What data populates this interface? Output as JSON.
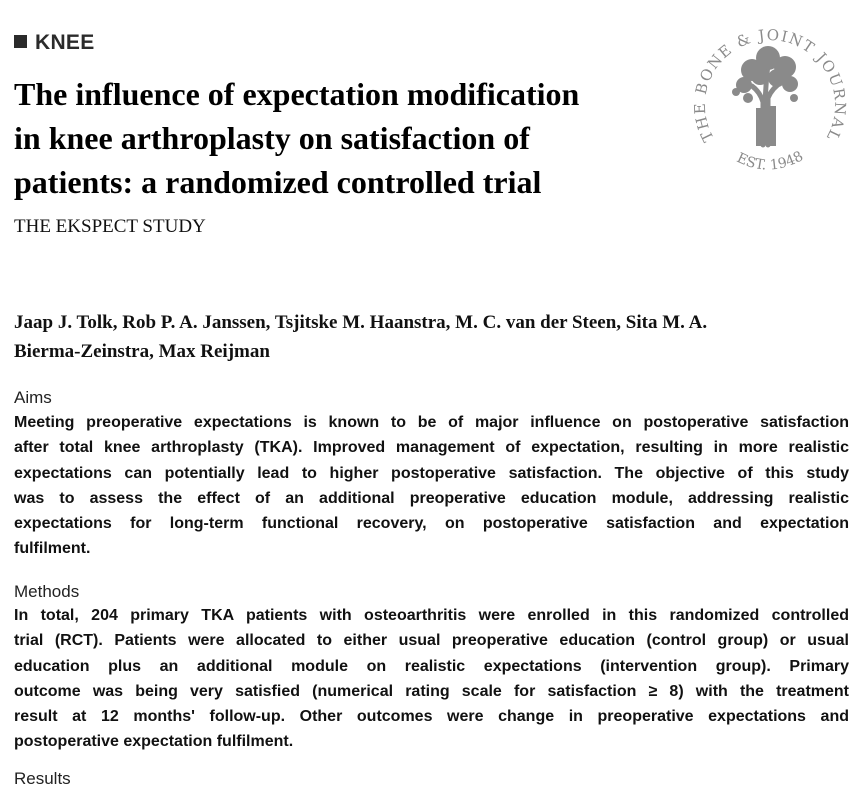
{
  "section": "KNEE",
  "title_lines": [
    "The influence of expectation modification",
    "in knee arthroplasty on satisfaction of",
    "patients: a randomized controlled trial"
  ],
  "subtitle": "THE EKSPECT STUDY",
  "logo": {
    "arc_text": "THE BONE & JOINT JOURNAL",
    "established": "EST. 1948",
    "color": "#8a8a8a"
  },
  "authors_lines": [
    "Jaap J. Tolk, Rob P. A. Janssen, Tsjitske M. Haanstra, M. C. van der Steen, Sita M. A.",
    "Bierma-Zeinstra, Max Reijman"
  ],
  "aims": {
    "heading": "Aims",
    "lines": [
      "Meeting preoperative expectations is known to be of major influence on postoperative satisfaction",
      "after total knee arthroplasty (TKA). Improved management of expectation, resulting in more realistic",
      "expectations can potentially lead to higher postoperative satisfaction. The objective of this study",
      "was to assess the effect of an additional preoperative education module, addressing realistic",
      "expectations for long-term functional recovery, on postoperative satisfaction and expectation",
      "fulfilment."
    ]
  },
  "methods": {
    "heading": "Methods",
    "lines": [
      "In total, 204 primary TKA patients with osteoarthritis were enrolled in this randomized controlled",
      "trial (RCT). Patients were allocated to either usual preoperative education (control group) or usual",
      "education plus an additional module on realistic expectations (intervention group). Primary",
      "outcome was being very satisfied (numerical rating scale for satisfaction ≥ 8) with the treatment",
      "result at 12 months' follow-up. Other outcomes were change in preoperative expectations and",
      "postoperative expectation fulfilment."
    ]
  },
  "results": {
    "heading": "Results"
  }
}
